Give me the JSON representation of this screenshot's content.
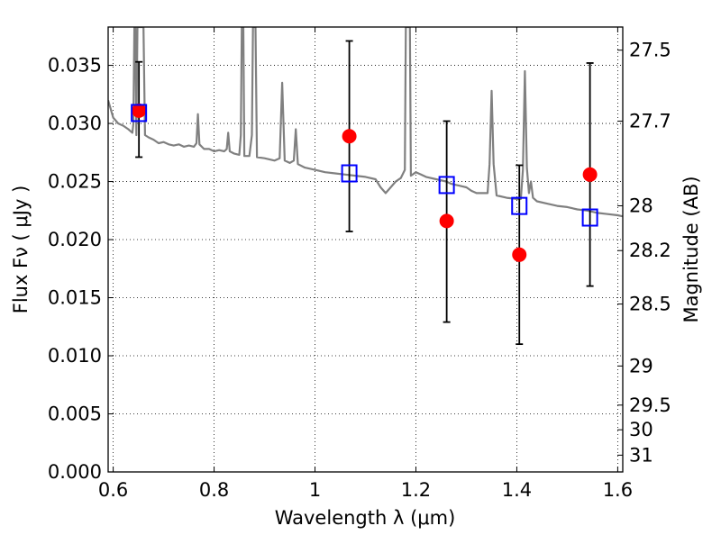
{
  "chart_data": {
    "type": "scatter",
    "xlabel": "Wavelength  λ (μm)",
    "ylabel": "Flux  Fν  ( μJy )",
    "ylabel_right": "Magnitude (AB)",
    "xlim": [
      0.59,
      1.61
    ],
    "ylim": [
      0.0,
      0.0383
    ],
    "grid": true,
    "x_ticks": [
      {
        "value": 0.6,
        "label": "0.6"
      },
      {
        "value": 0.8,
        "label": "0.8"
      },
      {
        "value": 1.0,
        "label": "1"
      },
      {
        "value": 1.2,
        "label": "1.2"
      },
      {
        "value": 1.4,
        "label": "1.4"
      },
      {
        "value": 1.6,
        "label": "1.6"
      }
    ],
    "y_ticks": [
      {
        "value": 0.0,
        "label": "0.000"
      },
      {
        "value": 0.005,
        "label": "0.005"
      },
      {
        "value": 0.01,
        "label": "0.010"
      },
      {
        "value": 0.015,
        "label": "0.015"
      },
      {
        "value": 0.02,
        "label": "0.020"
      },
      {
        "value": 0.025,
        "label": "0.025"
      },
      {
        "value": 0.03,
        "label": "0.030"
      },
      {
        "value": 0.035,
        "label": "0.035"
      }
    ],
    "y2_ticks": [
      {
        "mag": 27.5,
        "label": "27.5"
      },
      {
        "mag": 27.7,
        "label": "27.7"
      },
      {
        "mag": 28.0,
        "label": "28"
      },
      {
        "mag": 28.2,
        "label": "28.2"
      },
      {
        "mag": 28.5,
        "label": "28.5"
      },
      {
        "mag": 29.0,
        "label": "29"
      },
      {
        "mag": 29.5,
        "label": "29.5"
      },
      {
        "mag": 30.0,
        "label": "30"
      },
      {
        "mag": 31.0,
        "label": "31"
      }
    ],
    "model_spectrum": {
      "color": "#808080",
      "points": [
        [
          0.59,
          0.032
        ],
        [
          0.6,
          0.0305
        ],
        [
          0.61,
          0.03
        ],
        [
          0.62,
          0.0298
        ],
        [
          0.63,
          0.0295
        ],
        [
          0.638,
          0.0292
        ],
        [
          0.64,
          0.03
        ],
        [
          0.642,
          0.0383
        ],
        [
          0.644,
          0.0383
        ],
        [
          0.646,
          0.029
        ],
        [
          0.648,
          0.0383
        ],
        [
          0.651,
          0.0383
        ],
        [
          0.654,
          0.0383
        ],
        [
          0.657,
          0.0383
        ],
        [
          0.66,
          0.0383
        ],
        [
          0.663,
          0.029
        ],
        [
          0.67,
          0.0288
        ],
        [
          0.68,
          0.0286
        ],
        [
          0.69,
          0.0283
        ],
        [
          0.7,
          0.0284
        ],
        [
          0.71,
          0.0282
        ],
        [
          0.72,
          0.0281
        ],
        [
          0.73,
          0.0282
        ],
        [
          0.74,
          0.028
        ],
        [
          0.75,
          0.0281
        ],
        [
          0.76,
          0.028
        ],
        [
          0.765,
          0.0283
        ],
        [
          0.768,
          0.0308
        ],
        [
          0.771,
          0.0282
        ],
        [
          0.78,
          0.0278
        ],
        [
          0.79,
          0.0278
        ],
        [
          0.8,
          0.0276
        ],
        [
          0.81,
          0.0277
        ],
        [
          0.82,
          0.0276
        ],
        [
          0.825,
          0.0278
        ],
        [
          0.828,
          0.0292
        ],
        [
          0.831,
          0.0276
        ],
        [
          0.84,
          0.0274
        ],
        [
          0.85,
          0.0273
        ],
        [
          0.853,
          0.029
        ],
        [
          0.855,
          0.0383
        ],
        [
          0.858,
          0.0383
        ],
        [
          0.86,
          0.0272
        ],
        [
          0.87,
          0.0272
        ],
        [
          0.875,
          0.029
        ],
        [
          0.877,
          0.0383
        ],
        [
          0.882,
          0.0383
        ],
        [
          0.885,
          0.0271
        ],
        [
          0.9,
          0.027
        ],
        [
          0.92,
          0.0268
        ],
        [
          0.93,
          0.027
        ],
        [
          0.935,
          0.0335
        ],
        [
          0.94,
          0.0268
        ],
        [
          0.95,
          0.0266
        ],
        [
          0.958,
          0.0268
        ],
        [
          0.962,
          0.0295
        ],
        [
          0.966,
          0.0265
        ],
        [
          0.98,
          0.0262
        ],
        [
          1.0,
          0.026
        ],
        [
          1.02,
          0.0258
        ],
        [
          1.04,
          0.0257
        ],
        [
          1.06,
          0.0256
        ],
        [
          1.08,
          0.0255
        ],
        [
          1.1,
          0.0254
        ],
        [
          1.12,
          0.0252
        ],
        [
          1.13,
          0.0245
        ],
        [
          1.14,
          0.024
        ],
        [
          1.15,
          0.0245
        ],
        [
          1.16,
          0.025
        ],
        [
          1.17,
          0.0253
        ],
        [
          1.178,
          0.026
        ],
        [
          1.18,
          0.0383
        ],
        [
          1.188,
          0.0383
        ],
        [
          1.19,
          0.0255
        ],
        [
          1.2,
          0.0258
        ],
        [
          1.21,
          0.0256
        ],
        [
          1.22,
          0.0254
        ],
        [
          1.24,
          0.0252
        ],
        [
          1.26,
          0.025
        ],
        [
          1.27,
          0.0248
        ],
        [
          1.28,
          0.0247
        ],
        [
          1.29,
          0.0246
        ],
        [
          1.3,
          0.0245
        ],
        [
          1.31,
          0.0242
        ],
        [
          1.32,
          0.024
        ],
        [
          1.33,
          0.024
        ],
        [
          1.342,
          0.024
        ],
        [
          1.346,
          0.0265
        ],
        [
          1.35,
          0.0328
        ],
        [
          1.354,
          0.0265
        ],
        [
          1.36,
          0.0238
        ],
        [
          1.38,
          0.0236
        ],
        [
          1.4,
          0.0235
        ],
        [
          1.408,
          0.0235
        ],
        [
          1.412,
          0.026
        ],
        [
          1.416,
          0.0345
        ],
        [
          1.42,
          0.0262
        ],
        [
          1.424,
          0.024
        ],
        [
          1.428,
          0.025
        ],
        [
          1.432,
          0.0236
        ],
        [
          1.44,
          0.0233
        ],
        [
          1.46,
          0.0231
        ],
        [
          1.48,
          0.0229
        ],
        [
          1.5,
          0.0228
        ],
        [
          1.52,
          0.0226
        ],
        [
          1.54,
          0.0225
        ],
        [
          1.56,
          0.0223
        ],
        [
          1.58,
          0.0222
        ],
        [
          1.6,
          0.0221
        ],
        [
          1.61,
          0.022
        ]
      ]
    },
    "observed": {
      "color": "#ff0000",
      "points": [
        {
          "x": 0.651,
          "y": 0.0311,
          "yerr_low": 0.0271,
          "yerr_high": 0.0353
        },
        {
          "x": 1.068,
          "y": 0.0289,
          "yerr_low": 0.0207,
          "yerr_high": 0.0371
        },
        {
          "x": 1.261,
          "y": 0.0216,
          "yerr_low": 0.0129,
          "yerr_high": 0.0302
        },
        {
          "x": 1.405,
          "y": 0.0187,
          "yerr_low": 0.011,
          "yerr_high": 0.0264
        },
        {
          "x": 1.545,
          "y": 0.0256,
          "yerr_low": 0.016,
          "yerr_high": 0.0352
        }
      ]
    },
    "model_photometry": {
      "color": "#0000ff",
      "points": [
        {
          "x": 0.651,
          "y": 0.0309
        },
        {
          "x": 1.068,
          "y": 0.0257
        },
        {
          "x": 1.261,
          "y": 0.0247
        },
        {
          "x": 1.405,
          "y": 0.0229
        },
        {
          "x": 1.545,
          "y": 0.0219
        }
      ]
    }
  }
}
